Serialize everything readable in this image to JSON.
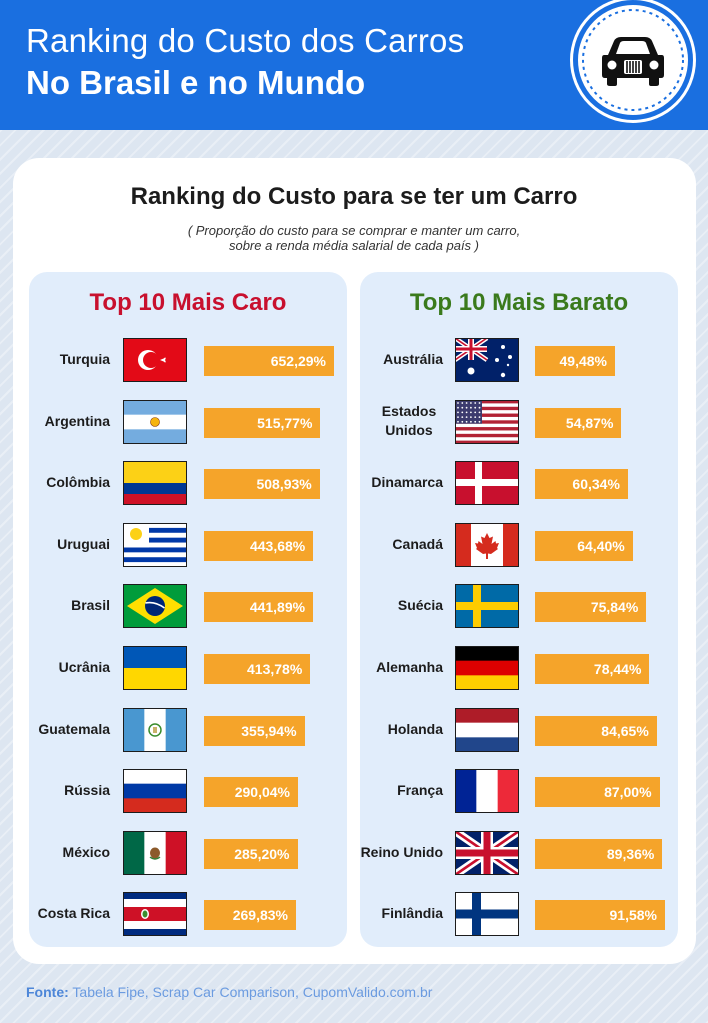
{
  "header": {
    "title_line1": "Ranking do Custo dos Carros",
    "title_line2": "No Brasil e no Mundo",
    "badge_icon": "car-front-icon"
  },
  "card": {
    "title": "Ranking do Custo para se ter um Carro",
    "subtitle_line1": "( Proporção do custo para se comprar e manter um carro,",
    "subtitle_line2": "sobre a renda média salarial de cada país )"
  },
  "chart_data": [
    {
      "type": "bar",
      "title": "Top 10 Mais Caro",
      "title_color": "#c8102e",
      "bar_color": "#f5a42a",
      "categories": [
        "Turquia",
        "Argentina",
        "Colômbia",
        "Uruguai",
        "Brasil",
        "Ucrânia",
        "Guatemala",
        "Rússia",
        "México",
        "Costa Rica"
      ],
      "values": [
        652.29,
        515.77,
        508.93,
        443.68,
        441.89,
        413.78,
        355.94,
        290.04,
        285.2,
        269.83
      ],
      "labels": [
        "652,29%",
        "515,77%",
        "508,93%",
        "443,68%",
        "441,89%",
        "413,78%",
        "355,94%",
        "290,04%",
        "285,20%",
        "269,83%"
      ],
      "flags": [
        "turkey",
        "argentina",
        "colombia",
        "uruguay",
        "brazil",
        "ukraine",
        "guatemala",
        "russia",
        "mexico",
        "costa-rica"
      ]
    },
    {
      "type": "bar",
      "title": "Top 10 Mais Barato",
      "title_color": "#3a7a1c",
      "bar_color": "#f5a42a",
      "categories": [
        "Austrália",
        "Estados Unidos",
        "Dinamarca",
        "Canadá",
        "Suécia",
        "Alemanha",
        "Holanda",
        "França",
        "Reino Unido",
        "Finlândia"
      ],
      "values": [
        49.48,
        54.87,
        60.34,
        64.4,
        75.84,
        78.44,
        84.65,
        87.0,
        89.36,
        91.58
      ],
      "labels": [
        "49,48%",
        "54,87%",
        "60,34%",
        "64,40%",
        "75,84%",
        "78,44%",
        "84,65%",
        "87,00%",
        "89,36%",
        "91,58%"
      ],
      "flags": [
        "australia",
        "usa",
        "denmark",
        "canada",
        "sweden",
        "germany",
        "netherlands",
        "france",
        "uk",
        "finland"
      ]
    }
  ],
  "footer": {
    "label": "Fonte:",
    "text": " Tabela Fipe, Scrap Car Comparison, CupomValido.com.br"
  },
  "colors": {
    "header_bg": "#1a6fe0",
    "panel_bg": "#e1edfb",
    "bar": "#f5a42a"
  }
}
